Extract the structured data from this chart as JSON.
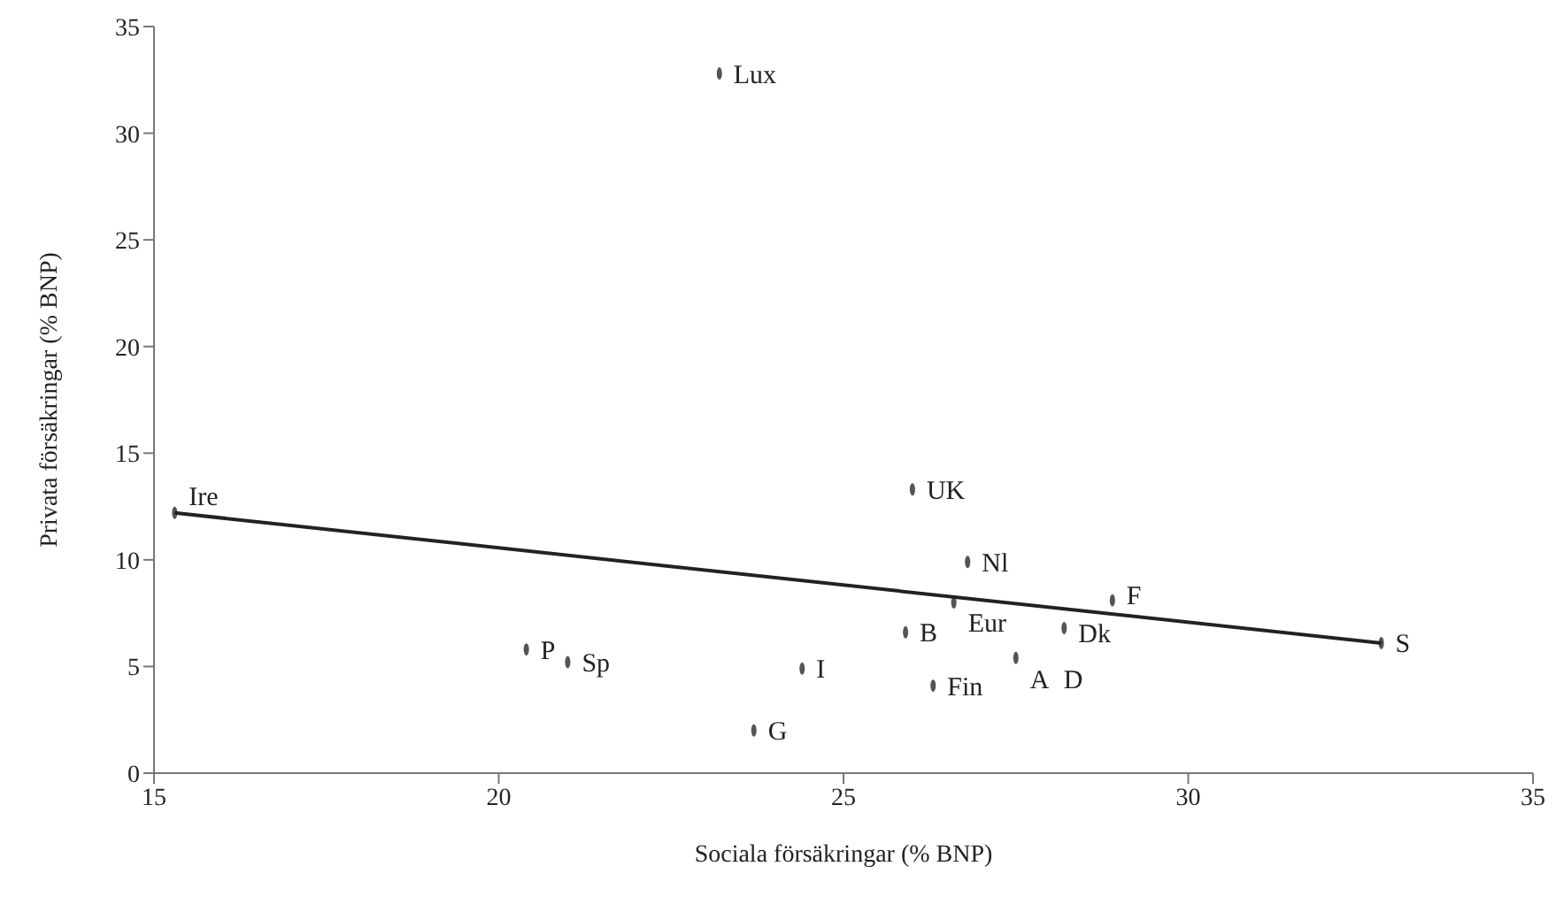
{
  "chart_data": {
    "type": "scatter",
    "xlabel": "Sociala försäkringar (% BNP)",
    "ylabel": "Privata försäkringar (% BNP)",
    "xlim": [
      15,
      35
    ],
    "ylim": [
      0,
      35
    ],
    "xticks": [
      15,
      20,
      25,
      30,
      35
    ],
    "yticks": [
      0,
      5,
      10,
      15,
      20,
      25,
      30,
      35
    ],
    "series": [
      {
        "color": "#555555",
        "x": [
          23.2,
          26.0,
          26.8,
          28.9,
          26.6,
          25.9,
          28.2,
          27.5,
          26.3,
          24.4,
          23.7,
          21.0,
          20.4,
          15.3,
          32.8
        ],
        "values": [
          32.8,
          13.3,
          9.9,
          8.1,
          8.0,
          6.6,
          6.8,
          5.4,
          4.1,
          4.9,
          2.0,
          5.2,
          5.8,
          12.2,
          6.1
        ]
      },
      {
        "type": "line",
        "color": "#222222",
        "x": [
          15.3,
          32.8
        ],
        "values": [
          12.2,
          6.1
        ]
      }
    ],
    "annotations": [
      {
        "text": "Lux",
        "x": 23.2,
        "y": 32.8
      },
      {
        "text": "UK",
        "x": 26.0,
        "y": 13.3
      },
      {
        "text": "Nl",
        "x": 26.8,
        "y": 9.9
      },
      {
        "text": "F",
        "x": 28.9,
        "y": 8.1
      },
      {
        "text": "B",
        "x": 25.9,
        "y": 6.6
      },
      {
        "text": "Eur",
        "x": 26.6,
        "y": 8.0
      },
      {
        "text": "Dk",
        "x": 28.2,
        "y": 6.8
      },
      {
        "text": "A",
        "x": 27.5,
        "y": 5.4
      },
      {
        "text": "D",
        "x": 27.5,
        "y": 5.4
      },
      {
        "text": "Fin",
        "x": 26.3,
        "y": 4.1
      },
      {
        "text": "I",
        "x": 24.4,
        "y": 4.9
      },
      {
        "text": "G",
        "x": 23.7,
        "y": 2.0
      },
      {
        "text": "Sp",
        "x": 21.0,
        "y": 5.2
      },
      {
        "text": "P",
        "x": 20.4,
        "y": 5.8
      },
      {
        "text": "Ire",
        "x": 15.3,
        "y": 12.2
      },
      {
        "text": "S",
        "x": 32.8,
        "y": 6.1
      }
    ]
  }
}
